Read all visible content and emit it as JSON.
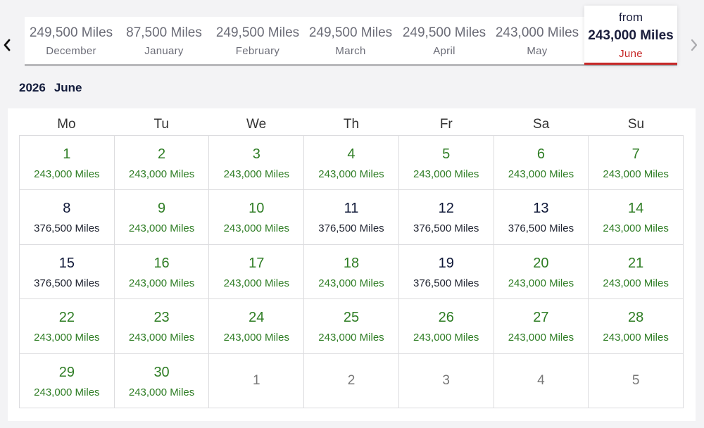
{
  "nav": {
    "prev_icon": "chevron-left-icon",
    "next_icon": "chevron-right-icon"
  },
  "months": [
    {
      "miles": "249,500 Miles",
      "name": "December"
    },
    {
      "miles": "87,500 Miles",
      "name": "January"
    },
    {
      "miles": "249,500 Miles",
      "name": "February"
    },
    {
      "miles": "249,500 Miles",
      "name": "March"
    },
    {
      "miles": "249,500 Miles",
      "name": "April"
    },
    {
      "miles": "243,000 Miles",
      "name": "May"
    }
  ],
  "selected_month": {
    "from": "from",
    "miles": "243,000 Miles",
    "name": "June"
  },
  "calendar": {
    "year": "2026",
    "month": "June",
    "weekdays": [
      "Mo",
      "Tu",
      "We",
      "Th",
      "Fr",
      "Sa",
      "Su"
    ],
    "days": [
      {
        "day": "1",
        "price": "243,000 Miles",
        "tone": "green"
      },
      {
        "day": "2",
        "price": "243,000 Miles",
        "tone": "green"
      },
      {
        "day": "3",
        "price": "243,000 Miles",
        "tone": "green"
      },
      {
        "day": "4",
        "price": "243,000 Miles",
        "tone": "green"
      },
      {
        "day": "5",
        "price": "243,000 Miles",
        "tone": "green"
      },
      {
        "day": "6",
        "price": "243,000 Miles",
        "tone": "green"
      },
      {
        "day": "7",
        "price": "243,000 Miles",
        "tone": "green"
      },
      {
        "day": "8",
        "price": "376,500 Miles",
        "tone": "navy"
      },
      {
        "day": "9",
        "price": "243,000 Miles",
        "tone": "green"
      },
      {
        "day": "10",
        "price": "243,000 Miles",
        "tone": "green"
      },
      {
        "day": "11",
        "price": "376,500 Miles",
        "tone": "navy"
      },
      {
        "day": "12",
        "price": "376,500 Miles",
        "tone": "navy"
      },
      {
        "day": "13",
        "price": "376,500 Miles",
        "tone": "navy"
      },
      {
        "day": "14",
        "price": "243,000 Miles",
        "tone": "green"
      },
      {
        "day": "15",
        "price": "376,500 Miles",
        "tone": "navy"
      },
      {
        "day": "16",
        "price": "243,000 Miles",
        "tone": "green"
      },
      {
        "day": "17",
        "price": "243,000 Miles",
        "tone": "green"
      },
      {
        "day": "18",
        "price": "243,000 Miles",
        "tone": "green"
      },
      {
        "day": "19",
        "price": "376,500 Miles",
        "tone": "navy"
      },
      {
        "day": "20",
        "price": "243,000 Miles",
        "tone": "green"
      },
      {
        "day": "21",
        "price": "243,000 Miles",
        "tone": "green"
      },
      {
        "day": "22",
        "price": "243,000 Miles",
        "tone": "green"
      },
      {
        "day": "23",
        "price": "243,000 Miles",
        "tone": "green"
      },
      {
        "day": "24",
        "price": "243,000 Miles",
        "tone": "green"
      },
      {
        "day": "25",
        "price": "243,000 Miles",
        "tone": "green"
      },
      {
        "day": "26",
        "price": "243,000 Miles",
        "tone": "green"
      },
      {
        "day": "27",
        "price": "243,000 Miles",
        "tone": "green"
      },
      {
        "day": "28",
        "price": "243,000 Miles",
        "tone": "green"
      },
      {
        "day": "29",
        "price": "243,000 Miles",
        "tone": "green"
      },
      {
        "day": "30",
        "price": "243,000 Miles",
        "tone": "green"
      }
    ],
    "next_month_days": [
      "1",
      "2",
      "3",
      "4",
      "5"
    ]
  },
  "colors": {
    "available": "#2e7d24",
    "higher_price": "#0f1838",
    "selected_accent": "#c62828",
    "background": "#f3f3f5"
  }
}
